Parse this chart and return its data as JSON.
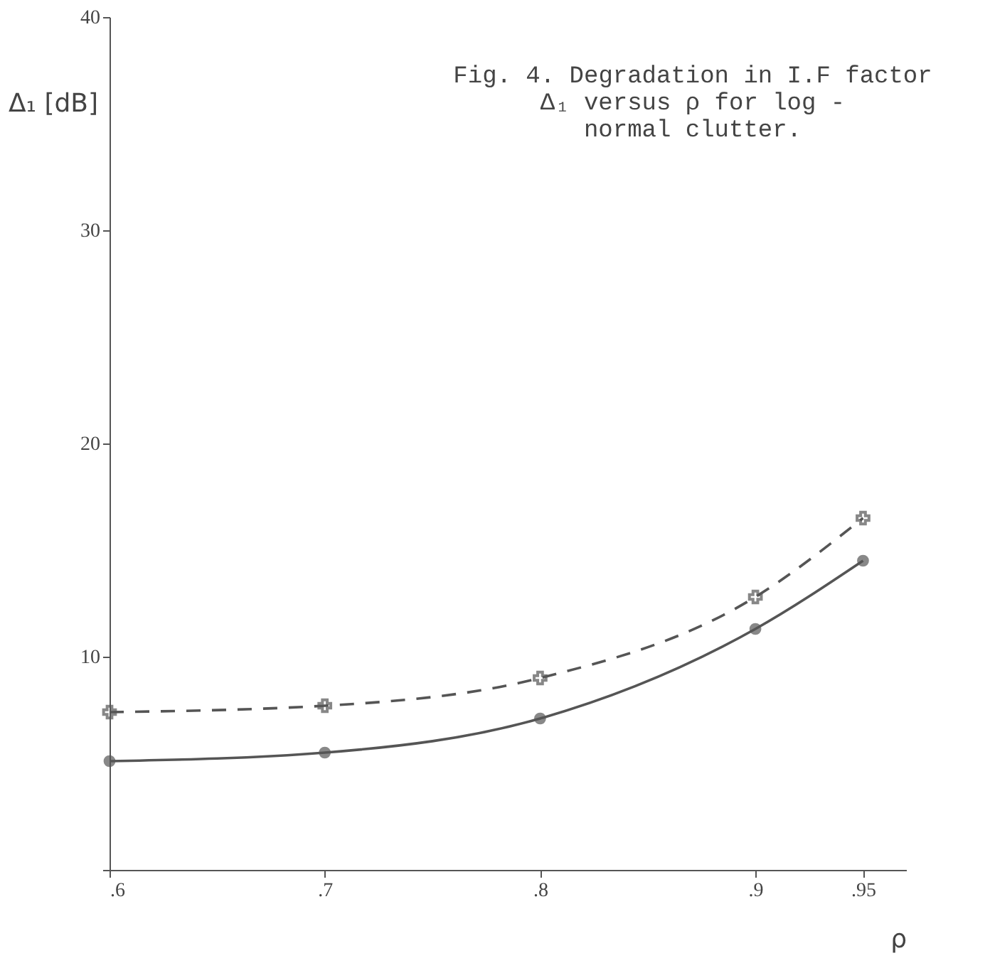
{
  "chart_data": {
    "type": "line",
    "title": [
      "Fig. 4. Degradation in I.F factor",
      "Δ₁ versus ρ for log -",
      "normal clutter."
    ],
    "xlabel": "ρ",
    "ylabel": "Δ₁ [dB]",
    "x": [
      0.6,
      0.7,
      0.8,
      0.9,
      0.95
    ],
    "series": [
      {
        "color": "#555555",
        "values": [
          5.1,
          5.5,
          7.1,
          11.3,
          14.5
        ],
        "marker": "circle",
        "line_style": "solid"
      },
      {
        "color": "#555555",
        "values": [
          7.4,
          7.7,
          9.0,
          12.8,
          16.5
        ],
        "marker": "cross",
        "line_style": "dashed"
      }
    ],
    "xlim": [
      0.6,
      0.97
    ],
    "ylim": [
      0,
      40
    ],
    "xticks": [
      {
        "value": 0.6,
        "label": ".6"
      },
      {
        "value": 0.7,
        "label": ".7"
      },
      {
        "value": 0.8,
        "label": ".8"
      },
      {
        "value": 0.9,
        "label": ".9"
      },
      {
        "value": 0.95,
        "label": ".95"
      }
    ],
    "yticks": [
      {
        "value": 0,
        "label": null
      },
      10,
      20,
      30,
      40
    ],
    "grid": false
  }
}
